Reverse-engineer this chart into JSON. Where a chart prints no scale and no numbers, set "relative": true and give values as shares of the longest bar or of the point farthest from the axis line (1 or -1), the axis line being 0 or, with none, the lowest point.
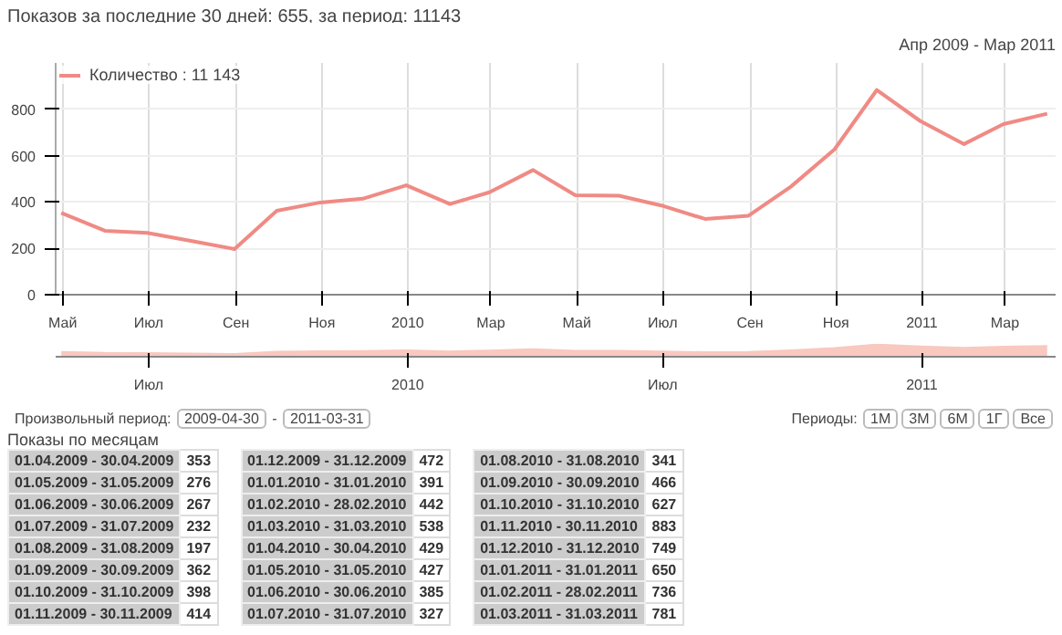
{
  "chart_data": [
    {
      "type": "line",
      "title": "Показов за последние 30 дней: 655, за период: 11143",
      "x": [
        "2009-04-30",
        "2009-05-31",
        "2009-06-30",
        "2009-07-31",
        "2009-08-31",
        "2009-09-30",
        "2009-10-31",
        "2009-11-30",
        "2009-12-31",
        "2010-01-31",
        "2010-02-28",
        "2010-03-31",
        "2010-04-30",
        "2010-05-31",
        "2010-06-30",
        "2010-07-31",
        "2010-08-31",
        "2010-09-30",
        "2010-10-31",
        "2010-11-30",
        "2010-12-31",
        "2011-01-31",
        "2011-02-28",
        "2011-03-31"
      ],
      "series": [
        {
          "name": "Количество : 11 143",
          "color": "#f08a84",
          "values": [
            353,
            276,
            267,
            232,
            197,
            362,
            398,
            414,
            472,
            391,
            442,
            538,
            429,
            427,
            385,
            327,
            341,
            466,
            627,
            883,
            749,
            650,
            736,
            781
          ]
        }
      ],
      "ylim": [
        0,
        1000
      ],
      "yticks": [
        0,
        200,
        400,
        600,
        800
      ],
      "xlim": [
        "2009-04-26",
        "2011-04-06"
      ],
      "xticks": [
        {
          "value": "2009-05-01",
          "label": "Май"
        },
        {
          "value": "2009-07-01",
          "label": "Июл"
        },
        {
          "value": "2009-09-01",
          "label": "Сен"
        },
        {
          "value": "2009-11-01",
          "label": "Ноя"
        },
        {
          "value": "2010-01-01",
          "label": "2010"
        },
        {
          "value": "2010-03-01",
          "label": "Мар"
        },
        {
          "value": "2010-05-01",
          "label": "Май"
        },
        {
          "value": "2010-07-01",
          "label": "Июл"
        },
        {
          "value": "2010-09-01",
          "label": "Сен"
        },
        {
          "value": "2010-11-01",
          "label": "Ноя"
        },
        {
          "value": "2011-01-01",
          "label": "2011"
        },
        {
          "value": "2011-03-01",
          "label": "Мар"
        }
      ],
      "grid": true,
      "legend": "top left",
      "annotations": [
        "Апр 2009 - Мар 2011",
        "Произвольный период:",
        "2009-04-30",
        "-",
        "2011-03-31",
        "Периоды:",
        "1М",
        "3М",
        "6М",
        "1Г",
        "Все"
      ]
    },
    {
      "type": "area",
      "relative": true,
      "x": [
        "2009-04-30",
        "2009-05-31",
        "2009-06-30",
        "2009-07-31",
        "2009-08-31",
        "2009-09-30",
        "2009-10-31",
        "2009-11-30",
        "2009-12-31",
        "2010-01-31",
        "2010-02-28",
        "2010-03-31",
        "2010-04-30",
        "2010-05-31",
        "2010-06-30",
        "2010-07-31",
        "2010-08-31",
        "2010-09-30",
        "2010-10-31",
        "2010-11-30",
        "2010-12-31",
        "2011-01-31",
        "2011-02-28",
        "2011-03-31"
      ],
      "series": [
        {
          "color": "#f9c8bf",
          "values": [
            0.4,
            0.31,
            0.3,
            0.26,
            0.22,
            0.41,
            0.45,
            0.47,
            0.53,
            0.44,
            0.5,
            0.61,
            0.49,
            0.48,
            0.44,
            0.37,
            0.39,
            0.53,
            0.71,
            1,
            0.85,
            0.74,
            0.83,
            0.88
          ]
        }
      ],
      "xlim": [
        "2009-04-26",
        "2011-04-06"
      ],
      "xticks": [
        {
          "value": "2009-07-01",
          "label": "Июл"
        },
        {
          "value": "2010-01-01",
          "label": "2010"
        },
        {
          "value": "2010-07-01",
          "label": "Июл"
        },
        {
          "value": "2011-01-01",
          "label": "2011"
        }
      ]
    },
    {
      "type": "other",
      "title": "Показы по месяцам",
      "data_labels": true,
      "values": [
        353,
        276,
        267,
        232,
        197,
        362,
        398,
        414,
        472,
        391,
        442,
        538,
        429,
        427,
        385,
        327,
        341,
        466,
        627,
        883,
        749,
        650,
        736,
        781
      ],
      "categories": [
        "01.04.2009 - 30.04.2009",
        "01.05.2009 - 31.05.2009",
        "01.06.2009 - 30.06.2009",
        "01.07.2009 - 31.07.2009",
        "01.08.2009 - 31.08.2009",
        "01.09.2009 - 30.09.2009",
        "01.10.2009 - 31.10.2009",
        "01.11.2009 - 30.11.2009",
        "01.12.2009 - 31.12.2009",
        "01.01.2010 - 31.01.2010",
        "01.02.2010 - 28.02.2010",
        "01.03.2010 - 31.03.2010",
        "01.04.2010 - 30.04.2010",
        "01.05.2010 - 31.05.2010",
        "01.06.2010 - 30.06.2010",
        "01.07.2010 - 31.07.2010",
        "01.08.2010 - 31.08.2010",
        "01.09.2010 - 30.09.2010",
        "01.10.2010 - 31.10.2010",
        "01.11.2010 - 30.11.2010",
        "01.12.2010 - 31.12.2010",
        "01.01.2011 - 31.01.2011",
        "01.02.2011 - 28.02.2011",
        "01.03.2011 - 31.03.2011"
      ]
    }
  ]
}
